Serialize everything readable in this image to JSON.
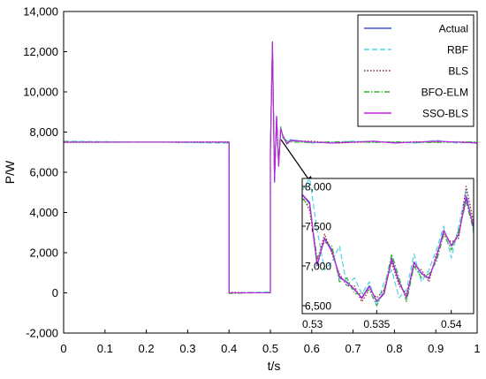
{
  "chart_data": [
    {
      "type": "line",
      "xlabel": "t/s",
      "ylabel": "P/W",
      "xlim": [
        0,
        1
      ],
      "ylim": [
        -2000,
        14000
      ],
      "xticks": [
        0,
        0.1,
        0.2,
        0.3,
        0.4,
        0.5,
        0.6,
        0.7,
        0.8,
        0.9,
        1
      ],
      "xtick_labels": [
        "0",
        "0.1",
        "0.2",
        "0.3",
        "0.4",
        "0.5",
        "0.6",
        "0.7",
        "0.8",
        "0.9",
        "1"
      ],
      "yticks": [
        -2000,
        0,
        2000,
        4000,
        6000,
        8000,
        10000,
        12000,
        14000
      ],
      "ytick_labels": [
        "-2,000",
        "0",
        "2,000",
        "4,000",
        "6,000",
        "8,000",
        "10,000",
        "12,000",
        "14,000"
      ],
      "grid": false,
      "legend_position": "top-right",
      "series": [
        {
          "name": "Actual",
          "color": "#3a55c8",
          "style": "solid",
          "x": [
            0,
            0.4,
            0.4,
            0.5,
            0.5,
            0.505,
            0.51,
            0.515,
            0.52,
            0.525,
            0.53,
            0.54,
            0.55,
            0.6,
            0.65,
            0.7,
            0.75,
            0.8,
            0.85,
            0.9,
            0.95,
            1
          ],
          "y": [
            7500,
            7500,
            0,
            0,
            7000,
            12500,
            5500,
            8800,
            6300,
            8200,
            7800,
            7400,
            7600,
            7500,
            7450,
            7500,
            7550,
            7450,
            7500,
            7550,
            7500,
            7450
          ]
        },
        {
          "name": "RBF",
          "color": "#4fd0e8",
          "style": "dashed",
          "x": [
            0,
            0.4,
            0.4,
            0.5,
            0.5,
            0.505,
            0.51,
            0.515,
            0.52,
            0.525,
            0.53,
            0.54,
            0.55,
            0.6,
            0.65,
            0.7,
            0.75,
            0.8,
            0.85,
            0.9,
            0.95,
            1
          ],
          "y": [
            7550,
            7450,
            0,
            50,
            7100,
            12300,
            5700,
            8700,
            6400,
            8300,
            7700,
            7500,
            7650,
            7450,
            7500,
            7550,
            7500,
            7500,
            7450,
            7600,
            7450,
            7500
          ]
        },
        {
          "name": "BLS",
          "color": "#8a2020",
          "style": "dotted",
          "x": [
            0,
            0.4,
            0.4,
            0.5,
            0.5,
            0.505,
            0.51,
            0.515,
            0.52,
            0.525,
            0.53,
            0.54,
            0.55,
            0.6,
            0.65,
            0.7,
            0.75,
            0.8,
            0.85,
            0.9,
            0.95,
            1
          ],
          "y": [
            7480,
            7520,
            30,
            0,
            6950,
            12400,
            5600,
            8750,
            6350,
            8150,
            7850,
            7450,
            7550,
            7550,
            7450,
            7480,
            7520,
            7480,
            7520,
            7500,
            7520,
            7480
          ]
        },
        {
          "name": "BFO-ELM",
          "color": "#2fb02f",
          "style": "dashdot",
          "x": [
            0,
            0.4,
            0.4,
            0.5,
            0.5,
            0.505,
            0.51,
            0.515,
            0.52,
            0.525,
            0.53,
            0.54,
            0.55,
            0.6,
            0.65,
            0.7,
            0.75,
            0.8,
            0.85,
            0.9,
            0.95,
            1
          ],
          "y": [
            7520,
            7480,
            -30,
            20,
            7050,
            12350,
            5650,
            8650,
            6450,
            8250,
            7750,
            7550,
            7500,
            7480,
            7520,
            7520,
            7480,
            7520,
            7480,
            7480,
            7500,
            7520
          ]
        },
        {
          "name": "SSO-BLS",
          "color": "#c020e0",
          "style": "solid",
          "x": [
            0,
            0.4,
            0.4,
            0.5,
            0.5,
            0.505,
            0.51,
            0.515,
            0.52,
            0.525,
            0.53,
            0.54,
            0.55,
            0.6,
            0.65,
            0.7,
            0.75,
            0.8,
            0.85,
            0.9,
            0.95,
            1
          ],
          "y": [
            7500,
            7500,
            0,
            0,
            7000,
            12450,
            5550,
            8780,
            6330,
            8180,
            7820,
            7420,
            7580,
            7500,
            7460,
            7500,
            7540,
            7460,
            7500,
            7540,
            7500,
            7460
          ]
        }
      ]
    },
    {
      "type": "line",
      "xlim": [
        0.53,
        0.5415
      ],
      "ylim": [
        6400,
        8100
      ],
      "xticks": [
        0.53,
        0.535,
        0.54
      ],
      "xtick_labels": [
        "0.53",
        "0.535",
        "0.54"
      ],
      "yticks": [
        6500,
        7000,
        7500,
        8000
      ],
      "ytick_labels": [
        "6,500",
        "7,000",
        "7,500",
        "8,000"
      ],
      "grid": false,
      "series": [
        {
          "name": "Actual",
          "color": "#3a55c8",
          "style": "solid",
          "x": [
            0.53,
            0.5305,
            0.531,
            0.5315,
            0.532,
            0.5325,
            0.533,
            0.5335,
            0.534,
            0.5345,
            0.535,
            0.5355,
            0.536,
            0.5365,
            0.537,
            0.5375,
            0.538,
            0.5385,
            0.539,
            0.5395,
            0.54,
            0.5405,
            0.541,
            0.5415
          ],
          "y": [
            7900,
            7800,
            7000,
            7350,
            7200,
            6850,
            6800,
            6700,
            6600,
            6750,
            6550,
            6650,
            7100,
            6800,
            6600,
            7050,
            6900,
            6850,
            7100,
            7450,
            7250,
            7400,
            7850,
            7500
          ]
        },
        {
          "name": "RBF",
          "color": "#4fd0e8",
          "style": "dashed",
          "x": [
            0.53,
            0.5305,
            0.531,
            0.5315,
            0.532,
            0.5325,
            0.533,
            0.5335,
            0.534,
            0.5345,
            0.535,
            0.5355,
            0.536,
            0.5365,
            0.537,
            0.5375,
            0.538,
            0.5385,
            0.539,
            0.5395,
            0.54,
            0.5405,
            0.541,
            0.5415
          ],
          "y": [
            7950,
            8100,
            7450,
            6950,
            7050,
            7250,
            6750,
            6850,
            6650,
            6800,
            6500,
            6800,
            6950,
            6600,
            6700,
            7150,
            6800,
            6950,
            7200,
            7500,
            7100,
            7500,
            7950,
            7400
          ]
        },
        {
          "name": "BLS",
          "color": "#8a2020",
          "style": "dotted",
          "x": [
            0.53,
            0.5305,
            0.531,
            0.5315,
            0.532,
            0.5325,
            0.533,
            0.5335,
            0.534,
            0.5345,
            0.535,
            0.5355,
            0.536,
            0.5365,
            0.537,
            0.5375,
            0.538,
            0.5385,
            0.539,
            0.5395,
            0.54,
            0.5405,
            0.541,
            0.5415
          ],
          "y": [
            7880,
            7700,
            7050,
            7400,
            7150,
            6900,
            6750,
            6750,
            6550,
            6700,
            6600,
            6700,
            7050,
            6750,
            6650,
            7000,
            6950,
            6800,
            7150,
            7400,
            7300,
            7350,
            8000,
            7550
          ]
        },
        {
          "name": "BFO-ELM",
          "color": "#2fb02f",
          "style": "dashdot",
          "x": [
            0.53,
            0.5305,
            0.531,
            0.5315,
            0.532,
            0.5325,
            0.533,
            0.5335,
            0.534,
            0.5345,
            0.535,
            0.5355,
            0.536,
            0.5365,
            0.537,
            0.5375,
            0.538,
            0.5385,
            0.539,
            0.5395,
            0.54,
            0.5405,
            0.541,
            0.5415
          ],
          "y": [
            7850,
            7750,
            7100,
            7300,
            7250,
            6800,
            6850,
            6650,
            6650,
            6700,
            6500,
            6700,
            7150,
            6850,
            6550,
            7000,
            6850,
            6900,
            7050,
            7400,
            7200,
            7450,
            7800,
            7450
          ]
        },
        {
          "name": "SSO-BLS",
          "color": "#c020e0",
          "style": "solid",
          "x": [
            0.53,
            0.5305,
            0.531,
            0.5315,
            0.532,
            0.5325,
            0.533,
            0.5335,
            0.534,
            0.5345,
            0.535,
            0.5355,
            0.536,
            0.5365,
            0.537,
            0.5375,
            0.538,
            0.5385,
            0.539,
            0.5395,
            0.54,
            0.5405,
            0.541,
            0.5415
          ],
          "y": [
            7900,
            7780,
            7020,
            7340,
            7180,
            6870,
            6790,
            6710,
            6590,
            6740,
            6560,
            6660,
            7080,
            6790,
            6610,
            7040,
            6910,
            6840,
            7110,
            7440,
            7260,
            7390,
            7880,
            7480
          ]
        }
      ]
    }
  ]
}
